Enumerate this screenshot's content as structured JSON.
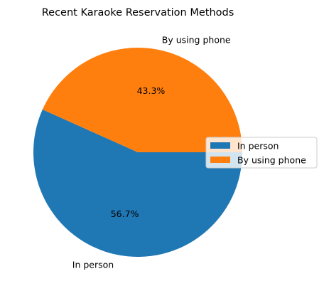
{
  "chart_data": {
    "type": "pie",
    "title": "Recent Karaoke Reservation Methods",
    "slices": [
      {
        "label": "In person",
        "value": 56.7,
        "pct_label": "56.7%",
        "color": "#1f77b4"
      },
      {
        "label": "By using phone",
        "value": 43.3,
        "pct_label": "43.3%",
        "color": "#ff7f0e"
      }
    ],
    "start_angle_deg": 0,
    "direction": "clockwise",
    "legend": {
      "placement": "center-right",
      "entries": [
        "In person",
        "By using phone"
      ]
    }
  }
}
